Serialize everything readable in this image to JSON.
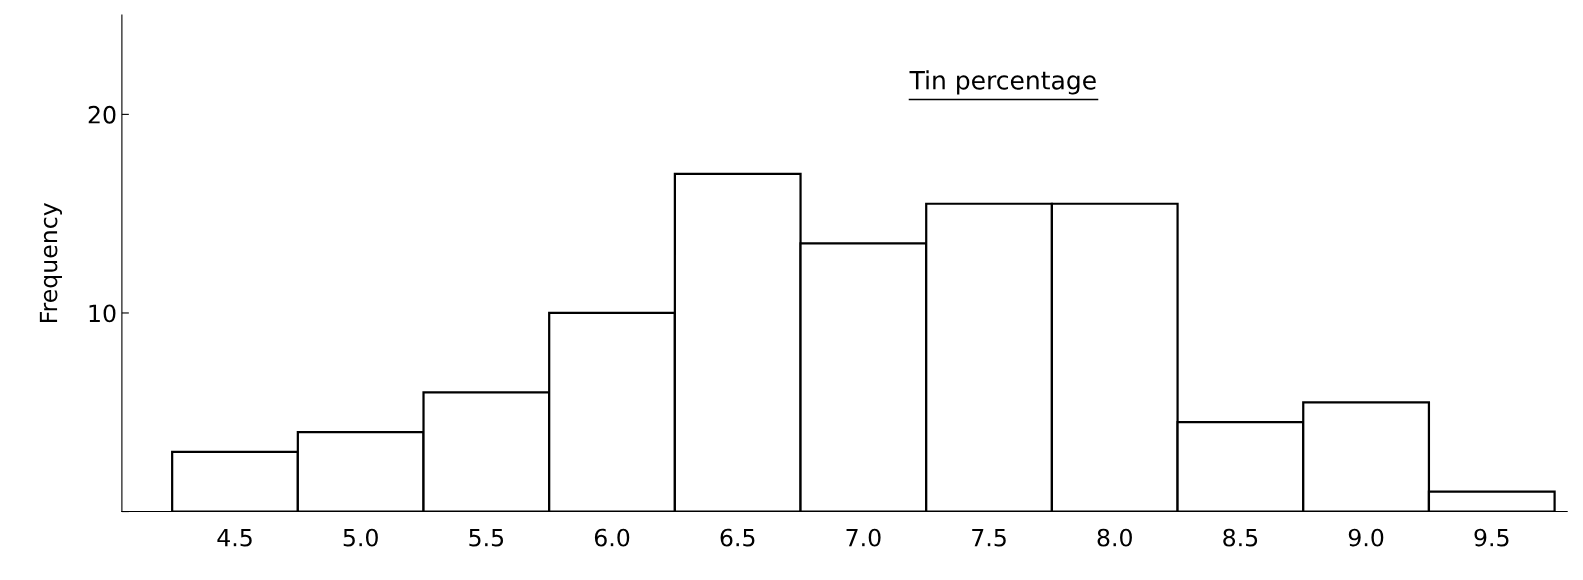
{
  "chart_data": {
    "type": "histogram",
    "title": "Tin percentage",
    "ylabel": "Frequency",
    "bins": [
      4.25,
      4.75,
      5.25,
      5.75,
      6.25,
      6.75,
      7.25,
      7.75,
      8.25,
      8.75,
      9.25,
      9.75
    ],
    "values": [
      3,
      4,
      6,
      10,
      17,
      13.5,
      15.5,
      15.5,
      4.5,
      5.5,
      1
    ],
    "color": "#ffffff",
    "xlim": [
      4.05,
      9.8
    ],
    "xticks": [
      4.5,
      {
        "value": 5,
        "label": "5.0"
      },
      5.5,
      {
        "value": 6,
        "label": "6.0"
      },
      6.5,
      {
        "value": 7,
        "label": "7.0"
      },
      7.5,
      {
        "value": 8,
        "label": "8.0"
      },
      8.5,
      {
        "value": 9,
        "label": "9.0"
      },
      9.5
    ],
    "ylim": [
      0,
      25
    ],
    "yticks": [
      {
        "value": 0,
        "label": null
      },
      10,
      20
    ],
    "grid": false
  }
}
